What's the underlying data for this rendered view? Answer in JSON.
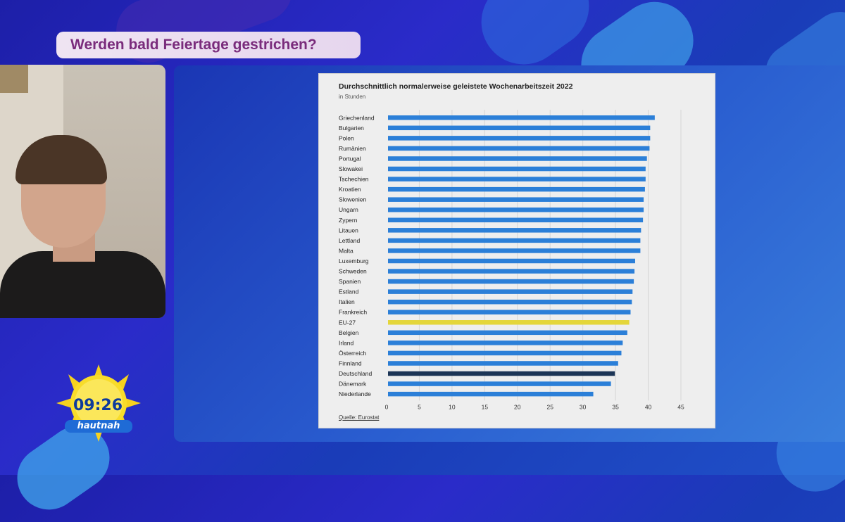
{
  "broadcast": {
    "headline": "Werden bald Feiertage gestrichen?",
    "clock": "09:26",
    "brand": "hautnah"
  },
  "colors": {
    "bar_default": "#2b7fd8",
    "bar_eu": "#e4d63a",
    "bar_highlight": "#1c3556",
    "headline_text": "#7a2c7c"
  },
  "chart_data": {
    "type": "bar",
    "orientation": "horizontal",
    "title": "Durchschnittlich normalerweise geleistete Wochenarbeitszeit 2022",
    "subtitle": "in Stunden",
    "source": "Quelle: Eurostat",
    "xlim": [
      0,
      45
    ],
    "xticks": [
      "0",
      "5",
      "10",
      "15",
      "20",
      "25",
      "30",
      "35",
      "40",
      "45"
    ],
    "grid": true,
    "categories": [
      "Griechenland",
      "Bulgarien",
      "Polen",
      "Rumänien",
      "Portugal",
      "Slowakei",
      "Tschechien",
      "Kroatien",
      "Slowenien",
      "Ungarn",
      "Zypern",
      "Litauen",
      "Lettland",
      "Malta",
      "Luxemburg",
      "Schweden",
      "Spanien",
      "Estland",
      "Italien",
      "Frankreich",
      "EU-27",
      "Belgien",
      "Irland",
      "Österreich",
      "Finnland",
      "Deutschland",
      "Dänemark",
      "Niederlande"
    ],
    "values": [
      41.0,
      40.3,
      40.3,
      40.2,
      39.8,
      39.6,
      39.6,
      39.5,
      39.3,
      39.3,
      39.2,
      38.9,
      38.8,
      38.8,
      38.0,
      37.9,
      37.8,
      37.6,
      37.5,
      37.3,
      37.1,
      36.8,
      36.1,
      35.9,
      35.4,
      34.9,
      34.3,
      31.6
    ],
    "highlight": {
      "EU-27": "bar_eu",
      "Deutschland": "bar_highlight"
    }
  }
}
